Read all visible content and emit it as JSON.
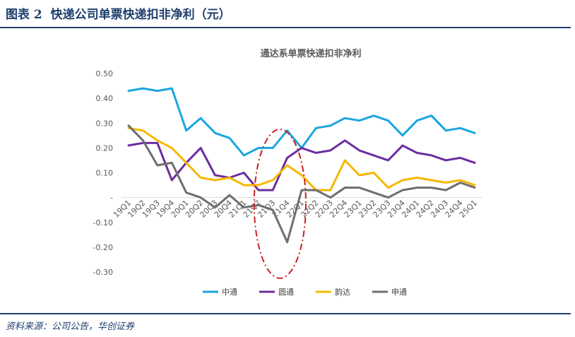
{
  "figure": {
    "label": "图表 2",
    "title": "快递公司单票快递扣非净利（元）",
    "source": "资料来源：公司公告，华创证券"
  },
  "chart_data": {
    "type": "line",
    "title": "通达系单票快递扣非净利",
    "xlabel": "",
    "ylabel": "",
    "ylim": [
      -0.3,
      0.5
    ],
    "yticks": [
      0.5,
      0.4,
      0.3,
      0.2,
      0.1,
      0,
      -0.1,
      -0.2,
      -0.3
    ],
    "ytick_labels": [
      "0.50",
      "0.40",
      "0.30",
      "0.20",
      "0.10",
      "-",
      "-0.10",
      "-0.20",
      "-0.30"
    ],
    "legend_position": "bottom",
    "categories": [
      "19Q1",
      "19Q2",
      "19Q3",
      "19Q4",
      "20Q1",
      "20Q2",
      "20Q3",
      "20Q4",
      "21Q1",
      "21Q2",
      "21Q3",
      "21Q4",
      "22Q1",
      "22Q2",
      "22Q3",
      "22Q4",
      "23Q1",
      "23Q2",
      "23Q3",
      "23Q4",
      "24Q1",
      "24Q2",
      "24Q3",
      "24Q4",
      "25Q1"
    ],
    "series": [
      {
        "name": "中通",
        "color": "#1aa6e0",
        "values": [
          0.43,
          0.44,
          0.43,
          0.44,
          0.27,
          0.32,
          0.26,
          0.24,
          0.17,
          0.2,
          0.2,
          0.27,
          0.2,
          0.28,
          0.29,
          0.32,
          0.31,
          0.33,
          0.31,
          0.25,
          0.31,
          0.33,
          0.27,
          0.28,
          0.26
        ]
      },
      {
        "name": "圆通",
        "color": "#6b2ea0",
        "values": [
          0.21,
          0.22,
          0.22,
          0.07,
          0.14,
          0.2,
          0.09,
          0.08,
          0.1,
          0.03,
          0.03,
          0.16,
          0.2,
          0.18,
          0.19,
          0.23,
          0.19,
          0.17,
          0.15,
          0.21,
          0.18,
          0.17,
          0.15,
          0.16,
          0.14
        ]
      },
      {
        "name": "韵达",
        "color": "#f5b800",
        "values": [
          0.28,
          0.27,
          0.23,
          0.2,
          0.14,
          0.08,
          0.07,
          0.08,
          0.05,
          0.05,
          0.07,
          0.13,
          0.09,
          0.03,
          0.03,
          0.15,
          0.09,
          0.1,
          0.04,
          0.07,
          0.08,
          0.07,
          0.06,
          0.07,
          0.05
        ]
      },
      {
        "name": "申通",
        "color": "#6e6e6e",
        "values": [
          0.29,
          0.23,
          0.13,
          0.14,
          0.02,
          0.0,
          -0.04,
          0.01,
          -0.04,
          -0.03,
          -0.05,
          -0.18,
          0.03,
          0.03,
          0.0,
          0.04,
          0.04,
          0.02,
          0.0,
          0.03,
          0.04,
          0.04,
          0.03,
          0.06,
          0.04
        ]
      }
    ],
    "annotation": {
      "type": "dashed-ellipse",
      "color": "#cc1f1f",
      "spans_categories": [
        "21Q2",
        "22Q1"
      ]
    }
  }
}
